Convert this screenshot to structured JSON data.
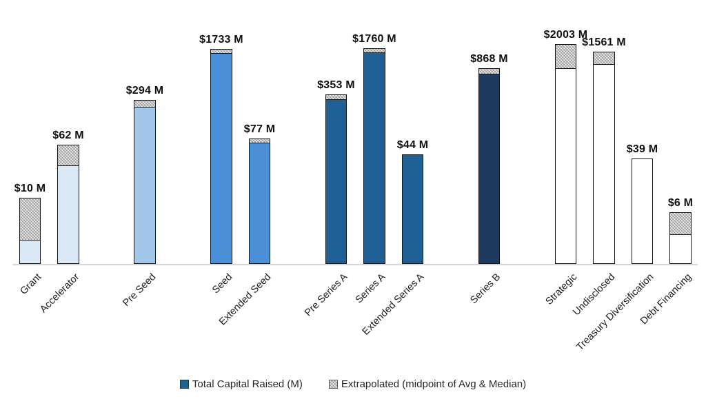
{
  "chart_data": {
    "type": "bar",
    "title": "",
    "xlabel": "",
    "ylabel": "",
    "unit": "$M",
    "scale": "log10",
    "grid": false,
    "legend_position": "bottom",
    "categories": [
      "Grant",
      "Accelerator",
      "Pre Seed",
      "Seed",
      "Extended Seed",
      "Pre Series A",
      "Series A",
      "Extended Series A",
      "Series B",
      "Strategic",
      "Undisclosed",
      "Treasury Diversification",
      "Debt Financing"
    ],
    "series": [
      {
        "name": "Total Capital Raised (M)",
        "values": [
          2.3,
          30,
          232,
          1490,
          67,
          300,
          1530,
          44,
          730,
          885,
          1020,
          39,
          2.8
        ]
      },
      {
        "name": "Extrapolated (midpoint of Avg & Median)",
        "values": [
          7.7,
          32,
          62,
          243,
          10,
          53,
          230,
          0,
          138,
          1118,
          541,
          0,
          3.2
        ]
      }
    ],
    "bars": [
      {
        "category": "Grant",
        "slot": 0,
        "total": 10,
        "label": "$10 M",
        "raised_est": 2.3,
        "extrapolated_est": 7.7,
        "fill": "#dbe9f6"
      },
      {
        "category": "Accelerator",
        "slot": 1,
        "total": 62,
        "label": "$62 M",
        "raised_est": 30,
        "extrapolated_est": 32,
        "fill": "#dbe9f6"
      },
      {
        "category": "Pre Seed",
        "slot": 3,
        "total": 294,
        "label": "$294 M",
        "raised_est": 232,
        "extrapolated_est": 62,
        "fill": "#a3c7ea"
      },
      {
        "category": "Seed",
        "slot": 5,
        "total": 1733,
        "label": "$1733 M",
        "raised_est": 1490,
        "extrapolated_est": 243,
        "fill": "#4b90d7"
      },
      {
        "category": "Extended Seed",
        "slot": 6,
        "total": 77,
        "label": "$77 M",
        "raised_est": 67,
        "extrapolated_est": 10,
        "fill": "#4b90d7"
      },
      {
        "category": "Pre Series A",
        "slot": 8,
        "total": 353,
        "label": "$353 M",
        "raised_est": 300,
        "extrapolated_est": 53,
        "fill": "#1f5f94"
      },
      {
        "category": "Series A",
        "slot": 9,
        "total": 1760,
        "label": "$1760 M",
        "raised_est": 1530,
        "extrapolated_est": 230,
        "fill": "#1f5f94"
      },
      {
        "category": "Extended Series A",
        "slot": 10,
        "total": 44,
        "label": "$44 M",
        "raised_est": 44,
        "extrapolated_est": 0,
        "fill": "#1f5f94"
      },
      {
        "category": "Series B",
        "slot": 12,
        "total": 868,
        "label": "$868 M",
        "raised_est": 730,
        "extrapolated_est": 138,
        "fill": "#1e3a5e"
      },
      {
        "category": "Strategic",
        "slot": 14,
        "total": 2003,
        "label": "$2003 M",
        "raised_est": 885,
        "extrapolated_est": 1118,
        "fill": "#ffffff"
      },
      {
        "category": "Undisclosed",
        "slot": 15,
        "total": 1561,
        "label": "$1561 M",
        "raised_est": 1020,
        "extrapolated_est": 541,
        "fill": "#ffffff"
      },
      {
        "category": "Treasury Diversification",
        "slot": 16,
        "total": 39,
        "label": "$39 M",
        "raised_est": 39,
        "extrapolated_est": 0,
        "fill": "#ffffff"
      },
      {
        "category": "Debt Financing",
        "slot": 17,
        "total": 6,
        "label": "$6 M",
        "raised_est": 2.8,
        "extrapolated_est": 3.2,
        "fill": "#ffffff"
      }
    ]
  },
  "legend": {
    "items": [
      {
        "label": "Total Capital Raised (M)",
        "swatch_color": "#1c6391",
        "swatch_style": "solid"
      },
      {
        "label": "Extrapolated (midpoint of Avg & Median)",
        "swatch_color": "#ececec",
        "swatch_style": "hatched"
      }
    ]
  },
  "colors": {
    "bar_border": "#141414",
    "axis_line": "#d6d6d6",
    "value_label": "#111111",
    "category_label": "#1c1c1c",
    "group_fills": [
      "#dbe9f6",
      "#a3c7ea",
      "#4b90d7",
      "#1f5f94",
      "#1e3a5e",
      "#ffffff"
    ]
  }
}
